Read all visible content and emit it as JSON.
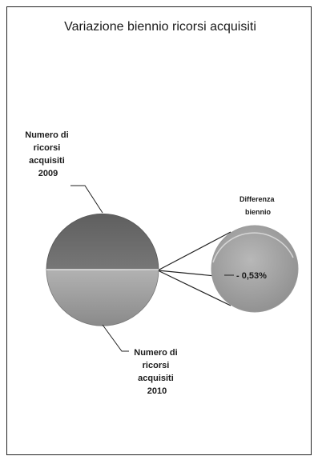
{
  "chart_data": {
    "type": "pie",
    "title": "Variazione biennio ricorsi acquisiti",
    "slices": [
      {
        "label_lines": [
          "Numero di",
          "ricorsi",
          "acquisiti",
          "2009"
        ],
        "value": 50.13
      },
      {
        "label_lines": [
          "Numero di",
          "ricorsi",
          "acquisiti",
          "2010"
        ],
        "value": 49.87
      }
    ],
    "exploded": {
      "label_lines": [
        "Differenza",
        "biennio"
      ],
      "value_label": "- 0,53%",
      "value": -0.53
    },
    "colors": {
      "slice_top": "#6f6f6f",
      "slice_bottom": "#a0a0a0",
      "slice_diff": "#a5a5a5"
    }
  }
}
